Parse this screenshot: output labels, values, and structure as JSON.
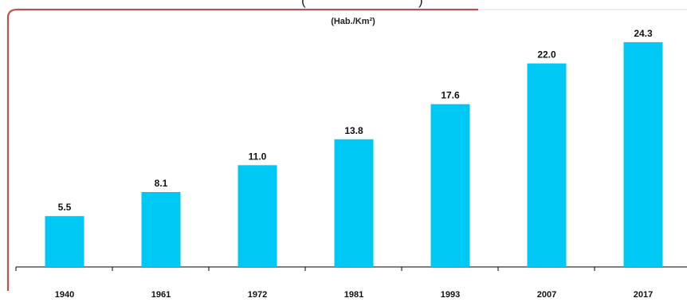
{
  "chart_data": {
    "type": "bar",
    "title": "",
    "subtitle": "(Hab./Km²)",
    "xlabel": "",
    "ylabel": "",
    "categories": [
      "1940",
      "1961",
      "1972",
      "1981",
      "1993",
      "2007",
      "2017"
    ],
    "values": [
      5.5,
      8.1,
      11.0,
      13.8,
      17.6,
      22.0,
      24.3
    ],
    "value_labels": [
      "5.5",
      "8.1",
      "11.0",
      "13.8",
      "17.6",
      "22.0",
      "24.3"
    ],
    "ylim": [
      0,
      25.5
    ],
    "grid": false,
    "legend": "none",
    "bar_color": "#00c8f5",
    "frame_accent_color": "#c0504d"
  }
}
